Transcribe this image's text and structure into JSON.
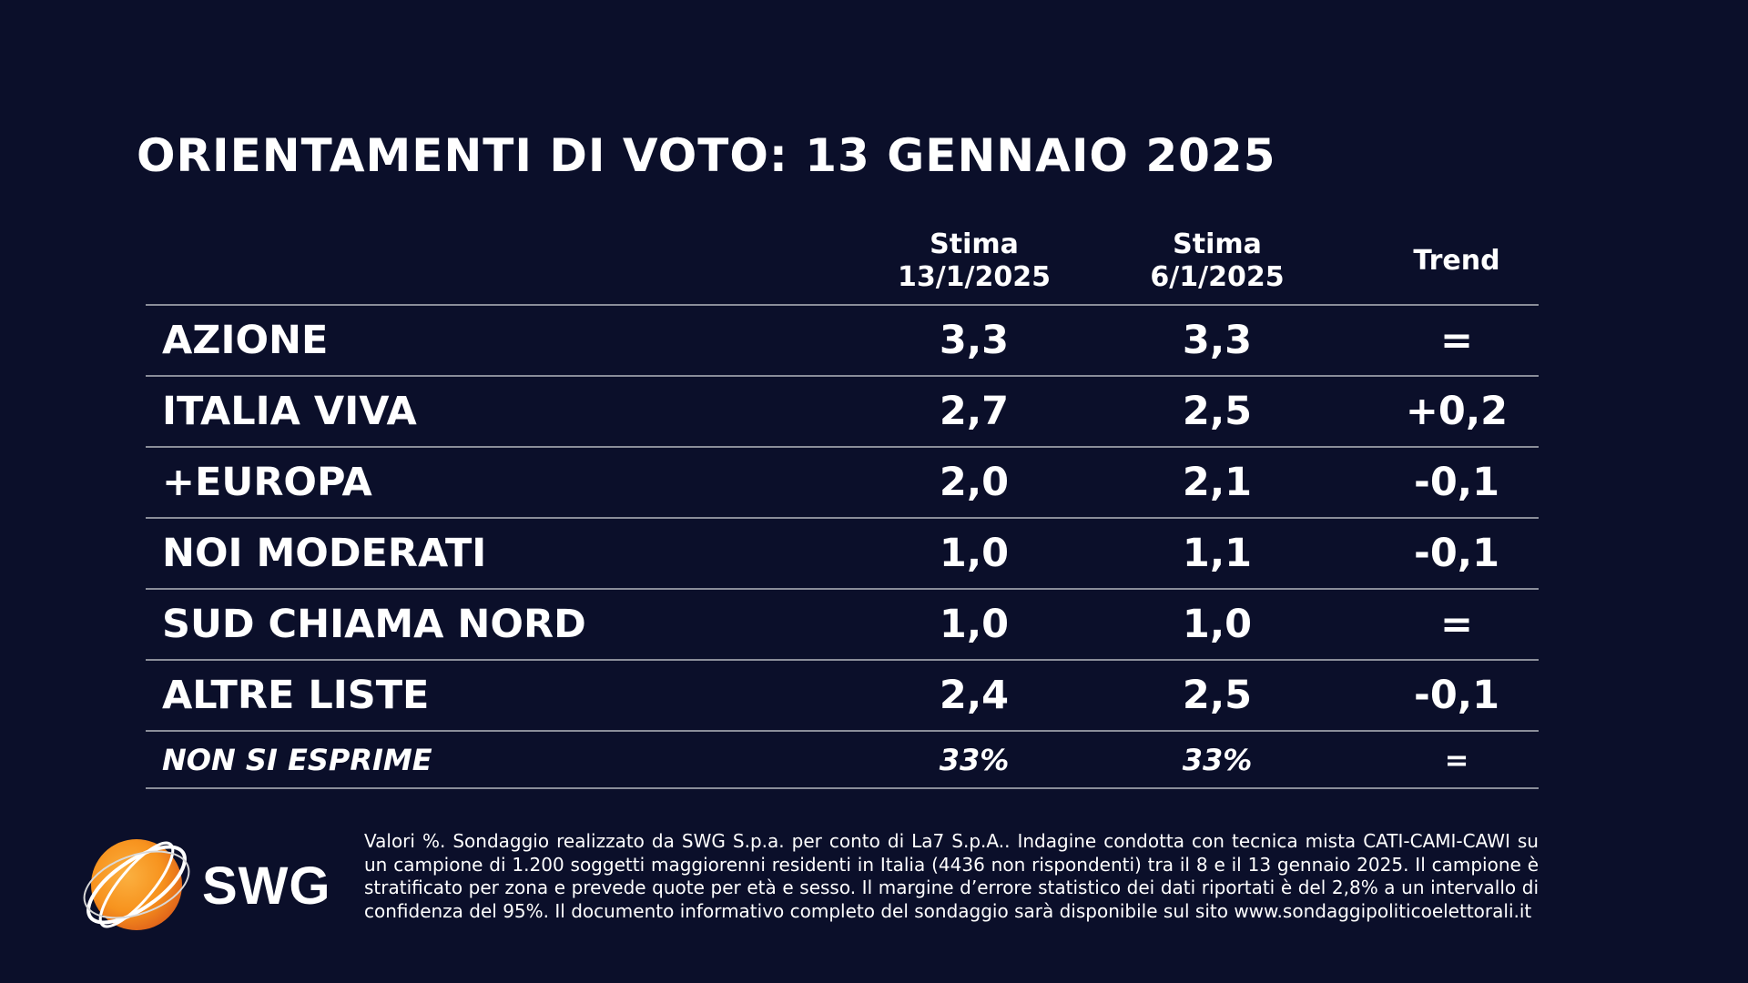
{
  "title": "ORIENTAMENTI DI VOTO: 13 GENNAIO 2025",
  "table": {
    "headers": {
      "col1_line1": "Stima",
      "col1_line2": "13/1/2025",
      "col2_line1": "Stima",
      "col2_line2": "6/1/2025",
      "col3": "Trend"
    },
    "rows": [
      {
        "name": "AZIONE",
        "current": "3,3",
        "previous": "3,3",
        "trend": "="
      },
      {
        "name": "ITALIA VIVA",
        "current": "2,7",
        "previous": "2,5",
        "trend": "+0,2"
      },
      {
        "name": "+EUROPA",
        "current": "2,0",
        "previous": "2,1",
        "trend": "-0,1"
      },
      {
        "name": "NOI MODERATI",
        "current": "1,0",
        "previous": "1,1",
        "trend": "-0,1"
      },
      {
        "name": "SUD CHIAMA NORD",
        "current": "1,0",
        "previous": "1,0",
        "trend": "="
      },
      {
        "name": "ALTRE LISTE",
        "current": "2,4",
        "previous": "2,5",
        "trend": "-0,1"
      },
      {
        "name": "NON SI ESPRIME",
        "current": "33%",
        "previous": "33%",
        "trend": "="
      }
    ]
  },
  "logo": {
    "text": "SWG",
    "icon": "globe-orbit-logo"
  },
  "footnote": "Valori %. Sondaggio realizzato da SWG S.p.a. per conto di La7 S.p.A.. Indagine condotta con tecnica mista CATI-CAMI-CAWI su un campione di 1.200 soggetti maggiorenni residenti in Italia (4436 non rispondenti) tra il 8 e il 13 gennaio 2025. Il campione è stratificato per zona e prevede quote per età e sesso. Il margine d’errore statistico dei dati riportati è del 2,8% a un intervallo di confidenza del 95%. Il documento informativo completo del sondaggio sarà disponibile sul sito www.sondaggipoliticoelettorali.it",
  "colors": {
    "background": "#0b0f2a",
    "text": "#ffffff",
    "divider": "#8a8d99",
    "logo_orange": "#f7931e"
  }
}
